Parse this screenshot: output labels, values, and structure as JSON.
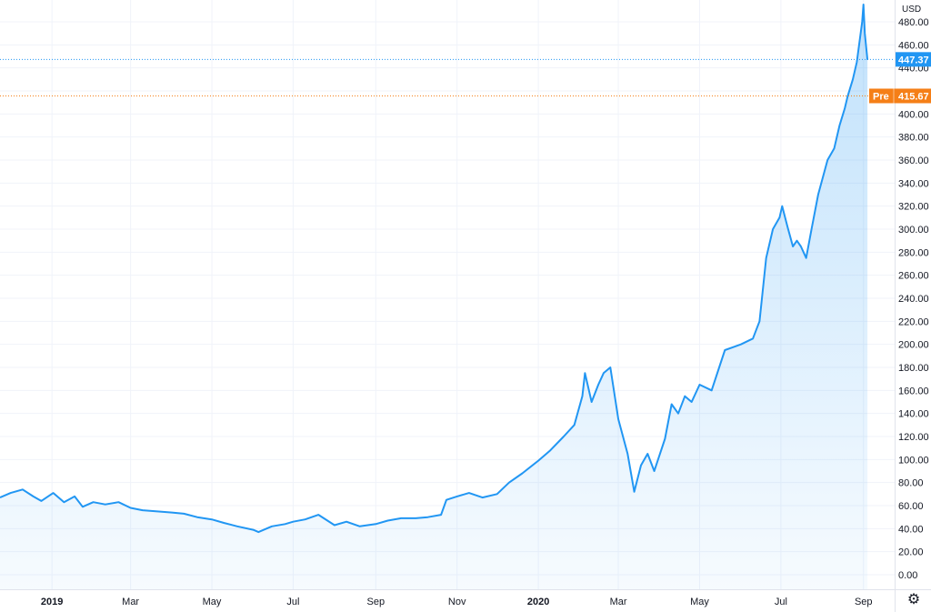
{
  "chart_data": {
    "type": "area",
    "currency": "USD",
    "ylim": [
      -12,
      505
    ],
    "y_ticks": [
      0,
      20,
      40,
      60,
      80,
      100,
      120,
      140,
      160,
      180,
      200,
      220,
      240,
      260,
      280,
      300,
      320,
      340,
      360,
      380,
      400,
      420,
      440,
      460,
      480
    ],
    "y_tick_labels": [
      "0.00",
      "20.00",
      "40.00",
      "60.00",
      "80.00",
      "100.00",
      "120.00",
      "140.00",
      "160.00",
      "180.00",
      "200.00",
      "220.00",
      "240.00",
      "260.00",
      "280.00",
      "300.00",
      "320.00",
      "340.00",
      "360.00",
      "380.00",
      "400.00",
      "420.00",
      "440.00",
      "460.00",
      "480.00"
    ],
    "x_ticks": [
      {
        "date": "2019-01-01",
        "label": "2019",
        "bold": true
      },
      {
        "date": "2019-03-01",
        "label": "Mar"
      },
      {
        "date": "2019-05-01",
        "label": "May"
      },
      {
        "date": "2019-07-01",
        "label": "Jul"
      },
      {
        "date": "2019-09-01",
        "label": "Sep"
      },
      {
        "date": "2019-11-01",
        "label": "Nov"
      },
      {
        "date": "2020-01-01",
        "label": "2020",
        "bold": true
      },
      {
        "date": "2020-03-01",
        "label": "Mar"
      },
      {
        "date": "2020-05-01",
        "label": "May"
      },
      {
        "date": "2020-07-01",
        "label": "Jul"
      },
      {
        "date": "2020-09-01",
        "label": "Sep"
      }
    ],
    "xlim": [
      "2018-11-23",
      "2020-09-08"
    ],
    "series": [
      {
        "color": "#2196f3",
        "x": [
          "2018-11-23",
          "2018-12-01",
          "2018-12-10",
          "2018-12-18",
          "2018-12-24",
          "2019-01-02",
          "2019-01-10",
          "2019-01-18",
          "2019-01-24",
          "2019-02-01",
          "2019-02-10",
          "2019-02-20",
          "2019-03-01",
          "2019-03-10",
          "2019-03-20",
          "2019-04-01",
          "2019-04-10",
          "2019-04-20",
          "2019-05-01",
          "2019-05-10",
          "2019-05-20",
          "2019-06-01",
          "2019-06-05",
          "2019-06-15",
          "2019-06-25",
          "2019-07-01",
          "2019-07-10",
          "2019-07-20",
          "2019-08-01",
          "2019-08-10",
          "2019-08-20",
          "2019-09-01",
          "2019-09-10",
          "2019-09-20",
          "2019-10-01",
          "2019-10-10",
          "2019-10-20",
          "2019-10-24",
          "2019-11-01",
          "2019-11-10",
          "2019-11-20",
          "2019-12-01",
          "2019-12-10",
          "2019-12-20",
          "2020-01-01",
          "2020-01-10",
          "2020-01-20",
          "2020-01-28",
          "2020-02-03",
          "2020-02-05",
          "2020-02-10",
          "2020-02-15",
          "2020-02-19",
          "2020-02-24",
          "2020-03-01",
          "2020-03-08",
          "2020-03-13",
          "2020-03-18",
          "2020-03-23",
          "2020-03-28",
          "2020-04-05",
          "2020-04-10",
          "2020-04-15",
          "2020-04-20",
          "2020-04-25",
          "2020-05-01",
          "2020-05-10",
          "2020-05-20",
          "2020-06-01",
          "2020-06-10",
          "2020-06-15",
          "2020-06-20",
          "2020-06-25",
          "2020-06-30",
          "2020-07-02",
          "2020-07-06",
          "2020-07-10",
          "2020-07-13",
          "2020-07-16",
          "2020-07-20",
          "2020-07-24",
          "2020-07-29",
          "2020-08-05",
          "2020-08-10",
          "2020-08-14",
          "2020-08-18",
          "2020-08-20",
          "2020-08-24",
          "2020-08-27",
          "2020-08-31",
          "2020-09-01",
          "2020-09-02",
          "2020-09-04"
        ],
        "y": [
          67,
          71,
          74,
          68,
          64,
          71,
          63,
          68,
          59,
          63,
          61,
          63,
          58,
          56,
          55,
          54,
          53,
          50,
          48,
          45,
          42,
          39,
          37,
          42,
          44,
          46,
          48,
          52,
          43,
          46,
          42,
          44,
          47,
          49,
          49,
          50,
          52,
          65,
          68,
          71,
          67,
          70,
          80,
          88,
          99,
          108,
          120,
          130,
          155,
          175,
          150,
          165,
          175,
          180,
          135,
          105,
          72,
          95,
          105,
          90,
          118,
          148,
          140,
          155,
          150,
          165,
          160,
          195,
          200,
          205,
          220,
          275,
          300,
          310,
          320,
          302,
          285,
          290,
          285,
          275,
          300,
          330,
          360,
          370,
          390,
          405,
          415,
          430,
          445,
          480,
          495,
          470,
          447
        ]
      }
    ],
    "last_price": {
      "value": 447.37,
      "label": "447.37",
      "color": "#2196f3"
    },
    "pre_market": {
      "value": 415.67,
      "label": "415.67",
      "tag": "Pre",
      "color": "#f57f17"
    }
  },
  "axis": {
    "currency_label": "USD"
  },
  "settings": {
    "icon": "gear-icon",
    "glyph": "⚙"
  }
}
